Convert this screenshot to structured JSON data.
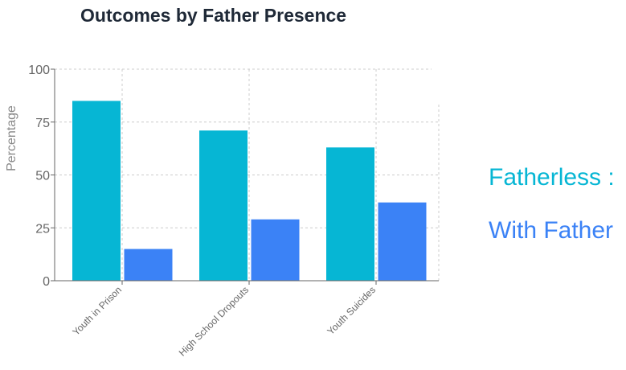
{
  "chart_data": {
    "type": "bar",
    "title": "Outcomes by Father Presence",
    "xlabel": "",
    "ylabel": "Percentage",
    "ylim": [
      0,
      100
    ],
    "yticks": [
      0,
      25,
      50,
      75,
      100
    ],
    "categories": [
      "Youth in Prison",
      "High School Dropouts",
      "Youth Suicides"
    ],
    "series": [
      {
        "name": "Fatherless",
        "legend_label": "Fatherless :",
        "color": "#06b6d4",
        "values": [
          85,
          71,
          63
        ]
      },
      {
        "name": "With Father",
        "legend_label": "With Father",
        "color": "#3b82f6",
        "values": [
          15,
          29,
          37
        ]
      }
    ],
    "grid": true,
    "legend_position": "right"
  }
}
